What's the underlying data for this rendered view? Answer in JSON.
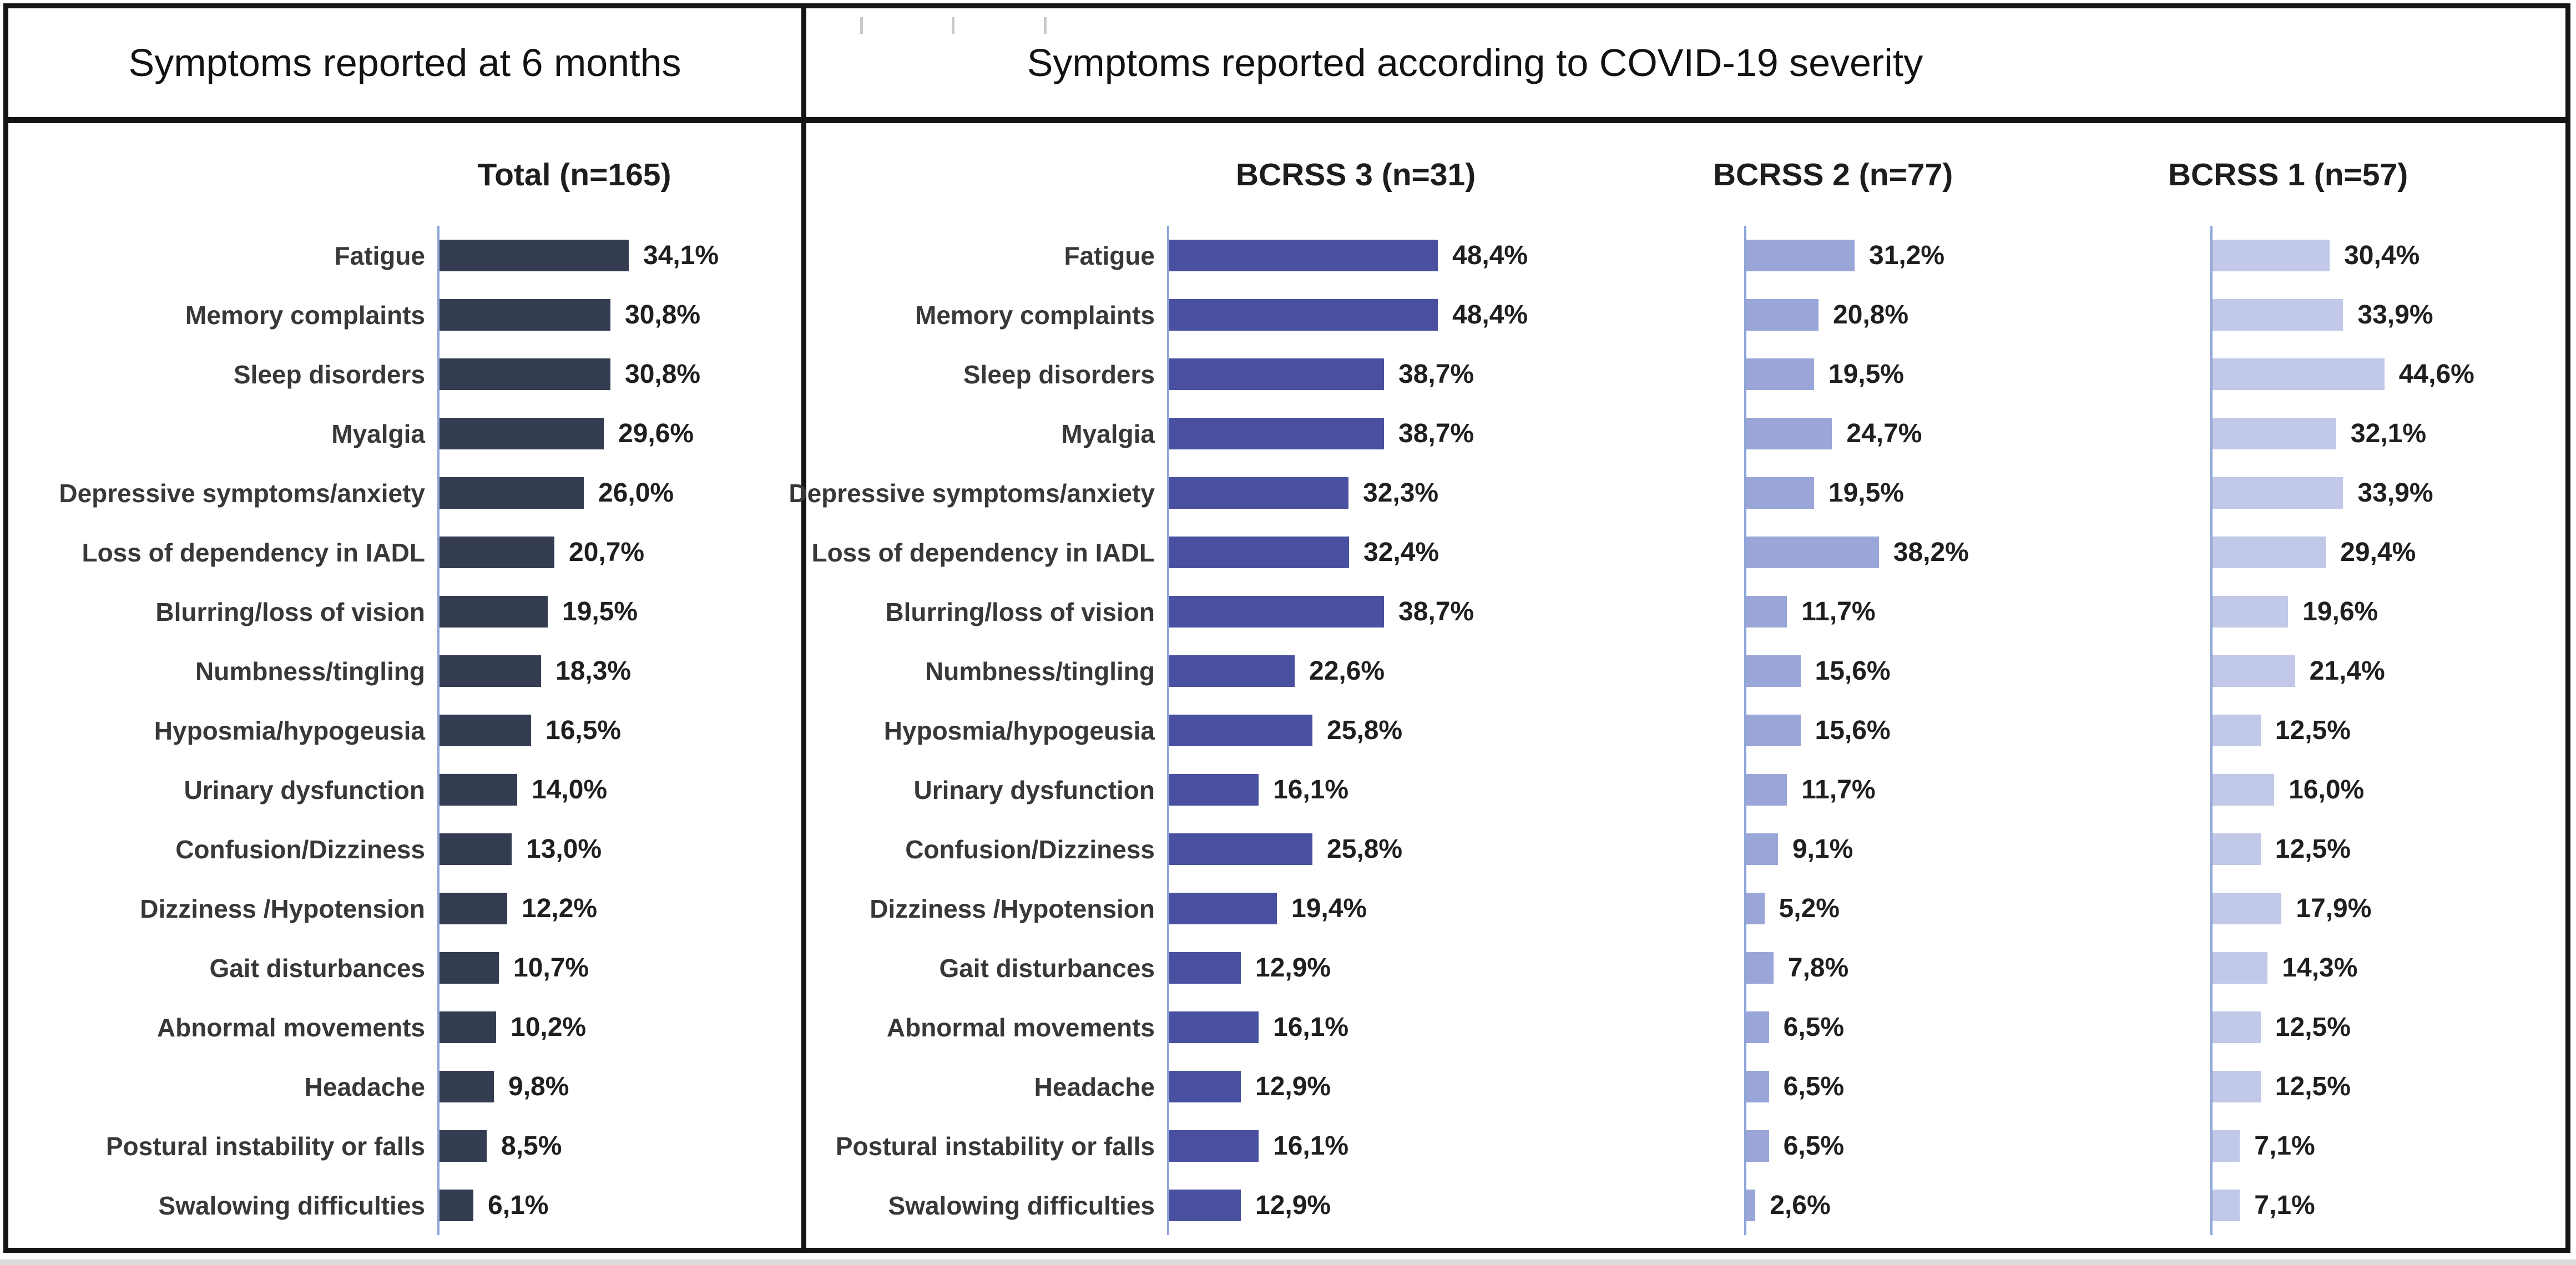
{
  "header": {
    "left": "Symptoms reported at 6 months",
    "right": "Symptoms reported according to COVID-19 severity"
  },
  "categories": [
    "Fatigue",
    "Memory complaints",
    "Sleep disorders",
    "Myalgia",
    "Depressive symptoms/anxiety",
    "Loss of dependency in IADL",
    "Blurring/loss of vision",
    "Numbness/tingling",
    "Hyposmia/hypogeusia",
    "Urinary dysfunction",
    "Confusion/Dizziness",
    "Dizziness /Hypotension",
    "Gait disturbances",
    "Abnormal movements",
    "Headache",
    "Postural instability or falls",
    "Swalowing difficulties"
  ],
  "colors": {
    "axis": "#8fa6d8",
    "total_bar": "#343c52",
    "bcrss3_bar": "#4a50a0",
    "bcrss2_bar": "#9aa5d8",
    "bcrss1_bar": "#c1c8e8"
  },
  "chart_data": [
    {
      "type": "bar",
      "orientation": "horizontal",
      "panel": "Symptoms reported at 6 months",
      "title": "Total (n=165)",
      "categories": [
        "Fatigue",
        "Memory complaints",
        "Sleep disorders",
        "Myalgia",
        "Depressive symptoms/anxiety",
        "Loss of dependency in IADL",
        "Blurring/loss of vision",
        "Numbness/tingling",
        "Hyposmia/hypogeusia",
        "Urinary dysfunction",
        "Confusion/Dizziness",
        "Dizziness /Hypotension",
        "Gait disturbances",
        "Abnormal movements",
        "Headache",
        "Postural instability or falls",
        "Swalowing difficulties"
      ],
      "values": [
        34.1,
        30.8,
        30.8,
        29.6,
        26.0,
        20.7,
        19.5,
        18.3,
        16.5,
        14.0,
        13.0,
        12.2,
        10.7,
        10.2,
        9.8,
        8.5,
        6.1
      ],
      "value_labels": [
        "34,1%",
        "30,8%",
        "30,8%",
        "29,6%",
        "26,0%",
        "20,7%",
        "19,5%",
        "18,3%",
        "16,5%",
        "14,0%",
        "13,0%",
        "12,2%",
        "10,7%",
        "10,2%",
        "9,8%",
        "8,5%",
        "6,1%"
      ],
      "xlim": [
        0,
        50
      ],
      "bar_color": "#343c52",
      "grid": false,
      "legend": false
    },
    {
      "type": "bar",
      "orientation": "horizontal",
      "panel": "Symptoms reported according to COVID-19 severity",
      "title": "BCRSS 3 (n=31)",
      "categories": [
        "Fatigue",
        "Memory complaints",
        "Sleep disorders",
        "Myalgia",
        "Depressive symptoms/anxiety",
        "Loss of dependency in IADL",
        "Blurring/loss of vision",
        "Numbness/tingling",
        "Hyposmia/hypogeusia",
        "Urinary dysfunction",
        "Confusion/Dizziness",
        "Dizziness /Hypotension",
        "Gait disturbances",
        "Abnormal movements",
        "Headache",
        "Postural instability or falls",
        "Swalowing difficulties"
      ],
      "values": [
        48.4,
        48.4,
        38.7,
        38.7,
        32.3,
        32.4,
        38.7,
        22.6,
        25.8,
        16.1,
        25.8,
        19.4,
        12.9,
        16.1,
        12.9,
        16.1,
        12.9
      ],
      "value_labels": [
        "48,4%",
        "48,4%",
        "38,7%",
        "38,7%",
        "32,3%",
        "32,4%",
        "38,7%",
        "22,6%",
        "25,8%",
        "16,1%",
        "25,8%",
        "19,4%",
        "12,9%",
        "16,1%",
        "12,9%",
        "16,1%",
        "12,9%"
      ],
      "xlim": [
        0,
        50
      ],
      "bar_color": "#4a50a0",
      "grid": false,
      "legend": false
    },
    {
      "type": "bar",
      "orientation": "horizontal",
      "panel": "Symptoms reported according to COVID-19 severity",
      "title": "BCRSS 2 (n=77)",
      "categories": [
        "Fatigue",
        "Memory complaints",
        "Sleep disorders",
        "Myalgia",
        "Depressive symptoms/anxiety",
        "Loss of dependency in IADL",
        "Blurring/loss of vision",
        "Numbness/tingling",
        "Hyposmia/hypogeusia",
        "Urinary dysfunction",
        "Confusion/Dizziness",
        "Dizziness /Hypotension",
        "Gait disturbances",
        "Abnormal movements",
        "Headache",
        "Postural instability or falls",
        "Swalowing difficulties"
      ],
      "values": [
        31.2,
        20.8,
        19.5,
        24.7,
        19.5,
        38.2,
        11.7,
        15.6,
        15.6,
        11.7,
        9.1,
        5.2,
        7.8,
        6.5,
        6.5,
        6.5,
        2.6
      ],
      "value_labels": [
        "31,2%",
        "20,8%",
        "19,5%",
        "24,7%",
        "19,5%",
        "38,2%",
        "11,7%",
        "15,6%",
        "15,6%",
        "11,7%",
        "9,1%",
        "5,2%",
        "7,8%",
        "6,5%",
        "6,5%",
        "6,5%",
        "2,6%"
      ],
      "xlim": [
        0,
        80
      ],
      "bar_color": "#9aa5d8",
      "grid": false,
      "legend": false
    },
    {
      "type": "bar",
      "orientation": "horizontal",
      "panel": "Symptoms reported according to COVID-19 severity",
      "title": "BCRSS 1 (n=57)",
      "categories": [
        "Fatigue",
        "Memory complaints",
        "Sleep disorders",
        "Myalgia",
        "Depressive symptoms/anxiety",
        "Loss of dependency in IADL",
        "Blurring/loss of vision",
        "Numbness/tingling",
        "Hyposmia/hypogeusia",
        "Urinary dysfunction",
        "Confusion/Dizziness",
        "Dizziness /Hypotension",
        "Gait disturbances",
        "Abnormal movements",
        "Headache",
        "Postural instability or falls",
        "Swalowing difficulties"
      ],
      "values": [
        30.4,
        33.9,
        44.6,
        32.1,
        33.9,
        29.4,
        19.6,
        21.4,
        12.5,
        16.0,
        12.5,
        17.9,
        14.3,
        12.5,
        12.5,
        7.1,
        7.1
      ],
      "value_labels": [
        "30,4%",
        "33,9%",
        "44,6%",
        "32,1%",
        "33,9%",
        "29,4%",
        "19,6%",
        "21,4%",
        "12,5%",
        "16,0%",
        "12,5%",
        "17,9%",
        "14,3%",
        "12,5%",
        "12,5%",
        "7,1%",
        "7,1%"
      ],
      "xlim": [
        0,
        72
      ],
      "bar_color": "#c1c8e8",
      "grid": false,
      "legend": false
    }
  ]
}
